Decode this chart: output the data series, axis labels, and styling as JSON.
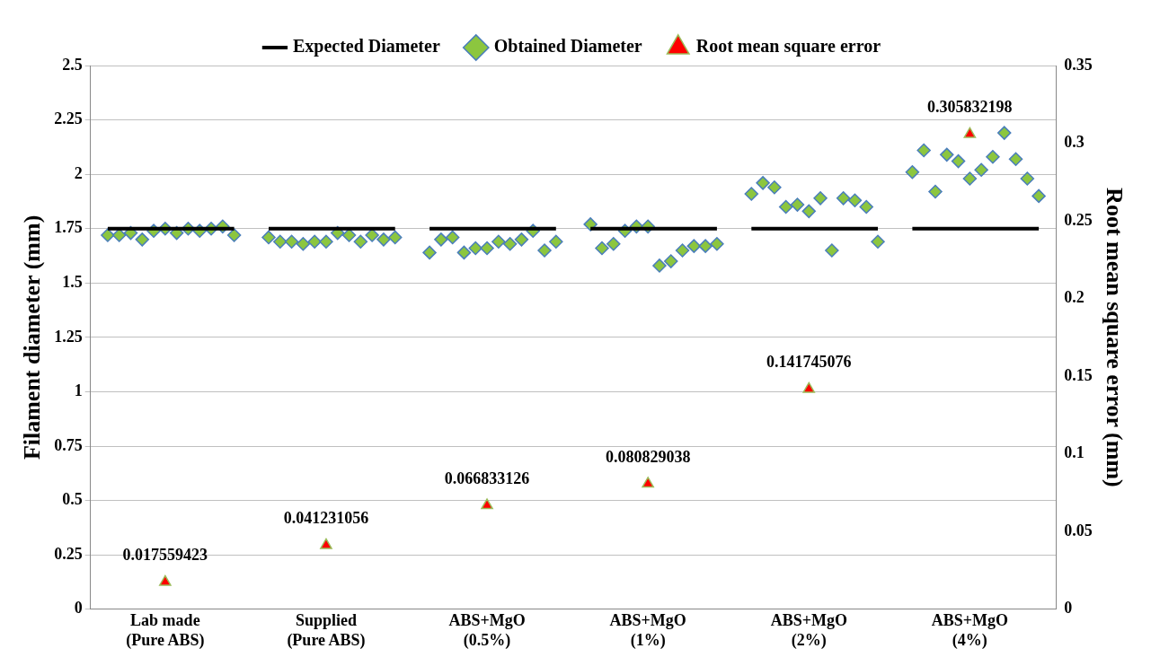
{
  "chart_data": {
    "type": "scatter",
    "categories": [
      null,
      null,
      null,
      null,
      null,
      null,
      "Lab made (Pure ABS)",
      null,
      null,
      null,
      null,
      null,
      null,
      null,
      null,
      null,
      null,
      null,
      null,
      null,
      "Supplied (Pure ABS)",
      null,
      null,
      null,
      null,
      null,
      null,
      null,
      null,
      null,
      null,
      null,
      null,
      null,
      "ABS+MgO (0.5%)",
      null,
      null,
      null,
      null,
      null,
      null,
      null,
      null,
      null,
      null,
      null,
      null,
      null,
      "ABS+MgO (1%)",
      null,
      null,
      null,
      null,
      null,
      null,
      null,
      null,
      null,
      null,
      null,
      null,
      null,
      "ABS+MgO (2%)",
      null,
      null,
      null,
      null,
      null,
      null,
      null,
      null,
      null,
      null,
      null,
      null,
      null,
      "ABS+MgO (4%)",
      null,
      null,
      null,
      null,
      null,
      null,
      null
    ],
    "ylabel": "Filament diameter (mm)",
    "y2label": "Root mean square error (mm)",
    "ylim": [
      0,
      2.5
    ],
    "yticks": [
      0,
      0.25,
      0.5,
      0.75,
      1,
      1.25,
      1.5,
      1.75,
      2,
      2.25,
      2.5
    ],
    "y2lim": [
      0,
      0.35
    ],
    "y2ticks": [
      0,
      0.05,
      0.1,
      0.15,
      0.2,
      0.25,
      0.3,
      0.35
    ],
    "grid": "y",
    "legend": "top",
    "series": [
      {
        "name": "Expected Diameter",
        "type": "line",
        "color": "#000000",
        "marker": "none",
        "values": [
          null,
          1.75,
          1.75,
          1.75,
          1.75,
          1.75,
          1.75,
          1.75,
          1.75,
          1.75,
          1.75,
          1.75,
          1.75,
          null,
          null,
          1.75,
          1.75,
          1.75,
          1.75,
          1.75,
          1.75,
          1.75,
          1.75,
          1.75,
          1.75,
          1.75,
          1.75,
          null,
          null,
          1.75,
          1.75,
          1.75,
          1.75,
          1.75,
          1.75,
          1.75,
          1.75,
          1.75,
          1.75,
          1.75,
          1.75,
          null,
          null,
          1.75,
          1.75,
          1.75,
          1.75,
          1.75,
          1.75,
          1.75,
          1.75,
          1.75,
          1.75,
          1.75,
          1.75,
          null,
          null,
          1.75,
          1.75,
          1.75,
          1.75,
          1.75,
          1.75,
          1.75,
          1.75,
          1.75,
          1.75,
          1.75,
          1.75,
          null,
          null,
          1.75,
          1.75,
          1.75,
          1.75,
          1.75,
          1.75,
          1.75,
          1.75,
          1.75,
          1.75,
          1.75,
          1.75,
          null
        ]
      },
      {
        "name": "Obtained Diameter",
        "color": "#8cc63f",
        "marker": "diamond",
        "values": [
          null,
          1.72,
          1.72,
          1.73,
          1.7,
          1.74,
          1.75,
          1.73,
          1.75,
          1.74,
          1.75,
          1.76,
          1.72,
          null,
          null,
          1.71,
          1.69,
          1.69,
          1.68,
          1.69,
          1.69,
          1.73,
          1.72,
          1.69,
          1.72,
          1.7,
          1.71,
          null,
          null,
          1.64,
          1.7,
          1.71,
          1.64,
          1.66,
          1.66,
          1.69,
          1.68,
          1.7,
          1.74,
          1.65,
          1.69,
          null,
          null,
          1.77,
          1.66,
          1.68,
          1.74,
          1.76,
          1.76,
          1.58,
          1.6,
          1.65,
          1.67,
          1.67,
          1.68,
          null,
          null,
          1.91,
          1.96,
          1.94,
          1.85,
          1.86,
          1.83,
          1.89,
          1.65,
          1.89,
          1.88,
          1.85,
          1.69,
          null,
          null,
          2.01,
          2.11,
          1.92,
          2.09,
          2.06,
          1.98,
          2.02,
          2.08,
          2.19,
          2.07,
          1.98,
          1.9,
          null
        ]
      },
      {
        "name": "Root mean square error",
        "axis": "y2",
        "color": "#ff0000",
        "marker": "triangle",
        "values": [
          null,
          null,
          null,
          null,
          null,
          null,
          0.017559423,
          null,
          null,
          null,
          null,
          null,
          null,
          null,
          null,
          null,
          null,
          null,
          null,
          null,
          0.041231056,
          null,
          null,
          null,
          null,
          null,
          null,
          null,
          null,
          null,
          null,
          null,
          null,
          null,
          0.066833126,
          null,
          null,
          null,
          null,
          null,
          null,
          null,
          null,
          null,
          null,
          null,
          null,
          null,
          0.080829038,
          null,
          null,
          null,
          null,
          null,
          null,
          null,
          null,
          null,
          null,
          null,
          null,
          null,
          0.141745076,
          null,
          null,
          null,
          null,
          null,
          null,
          null,
          null,
          null,
          null,
          null,
          null,
          null,
          0.305832198,
          null,
          null,
          null,
          null,
          null,
          null,
          null
        ],
        "data_labels": true
      }
    ]
  }
}
